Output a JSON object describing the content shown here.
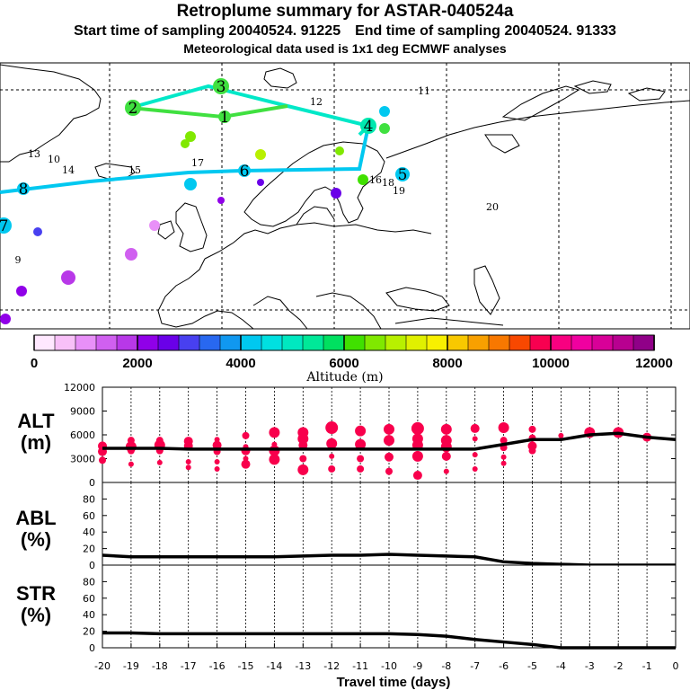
{
  "title": {
    "main": "Retroplume summary for ASTAR-040524a",
    "start": "Start time of sampling 20040524. 91225",
    "end": "End time of sampling 20040524. 91333",
    "met": "Meteorological data used is 1x1 deg ECMWF analyses"
  },
  "colorbar": {
    "label": "Altitude (m)",
    "ticks": [
      "0",
      "2000",
      "4000",
      "6000",
      "8000",
      "10000",
      "12000"
    ],
    "colors": [
      "#ffe8ff",
      "#f8c0f8",
      "#e890f8",
      "#d060f0",
      "#b838e8",
      "#9000e8",
      "#6a00e8",
      "#4840f0",
      "#2868f0",
      "#1098f0",
      "#00c8f0",
      "#00e0e0",
      "#00e8c0",
      "#00e898",
      "#00e060",
      "#40e000",
      "#80e800",
      "#b8f000",
      "#e0f000",
      "#f8f000",
      "#f8c800",
      "#f8a000",
      "#f87800",
      "#f84800",
      "#f80050",
      "#f80080",
      "#f000a0",
      "#d80098",
      "#b80090",
      "#900088"
    ]
  },
  "chart_data": [
    {
      "type": "scatter",
      "name": "altitude",
      "ylabel": "ALT (m)",
      "ylabel_lines": [
        "ALT",
        "(m)"
      ],
      "ylim": [
        0,
        12000
      ],
      "yticks": [
        0,
        3000,
        6000,
        9000,
        12000
      ],
      "xlim": [
        -20,
        0
      ],
      "mean_line": {
        "x": [
          -20,
          -19,
          -18,
          -17,
          -16,
          -15,
          -14,
          -13,
          -12,
          -11,
          -10,
          -9,
          -8,
          -7,
          -6,
          -5,
          -4,
          -3,
          -2,
          -1,
          0
        ],
        "y": [
          4300,
          4300,
          4300,
          4200,
          4200,
          4200,
          4200,
          4200,
          4200,
          4200,
          4200,
          4200,
          4200,
          4200,
          4800,
          5400,
          5400,
          6000,
          6200,
          5700,
          5400
        ]
      },
      "points": [
        {
          "x": -20,
          "y": 4600,
          "s": 5
        },
        {
          "x": -20,
          "y": 3900,
          "s": 5
        },
        {
          "x": -20,
          "y": 2800,
          "s": 4
        },
        {
          "x": -19,
          "y": 5300,
          "s": 4
        },
        {
          "x": -19,
          "y": 4500,
          "s": 6
        },
        {
          "x": -19,
          "y": 4000,
          "s": 4
        },
        {
          "x": -19,
          "y": 2300,
          "s": 3
        },
        {
          "x": -18,
          "y": 5300,
          "s": 4
        },
        {
          "x": -18,
          "y": 4700,
          "s": 6
        },
        {
          "x": -18,
          "y": 4000,
          "s": 4
        },
        {
          "x": -18,
          "y": 2500,
          "s": 3
        },
        {
          "x": -17,
          "y": 5200,
          "s": 5
        },
        {
          "x": -17,
          "y": 4600,
          "s": 5
        },
        {
          "x": -17,
          "y": 2600,
          "s": 3
        },
        {
          "x": -17,
          "y": 1900,
          "s": 3
        },
        {
          "x": -16,
          "y": 5400,
          "s": 3
        },
        {
          "x": -16,
          "y": 4700,
          "s": 5
        },
        {
          "x": -16,
          "y": 3900,
          "s": 4
        },
        {
          "x": -16,
          "y": 2600,
          "s": 3
        },
        {
          "x": -16,
          "y": 1700,
          "s": 3
        },
        {
          "x": -15,
          "y": 5900,
          "s": 4
        },
        {
          "x": -15,
          "y": 4500,
          "s": 3
        },
        {
          "x": -15,
          "y": 4000,
          "s": 5
        },
        {
          "x": -15,
          "y": 3000,
          "s": 3
        },
        {
          "x": -15,
          "y": 2300,
          "s": 5
        },
        {
          "x": -14,
          "y": 6300,
          "s": 6
        },
        {
          "x": -14,
          "y": 4800,
          "s": 3
        },
        {
          "x": -14,
          "y": 4000,
          "s": 6
        },
        {
          "x": -14,
          "y": 2900,
          "s": 6
        },
        {
          "x": -13,
          "y": 6300,
          "s": 6
        },
        {
          "x": -13,
          "y": 5500,
          "s": 6
        },
        {
          "x": -13,
          "y": 4700,
          "s": 5
        },
        {
          "x": -13,
          "y": 3000,
          "s": 4
        },
        {
          "x": -13,
          "y": 1600,
          "s": 6
        },
        {
          "x": -12,
          "y": 6900,
          "s": 7
        },
        {
          "x": -12,
          "y": 4900,
          "s": 6
        },
        {
          "x": -12,
          "y": 3300,
          "s": 3
        },
        {
          "x": -12,
          "y": 1700,
          "s": 4
        },
        {
          "x": -11,
          "y": 6500,
          "s": 6
        },
        {
          "x": -11,
          "y": 4800,
          "s": 6
        },
        {
          "x": -11,
          "y": 3000,
          "s": 4
        },
        {
          "x": -11,
          "y": 1700,
          "s": 4
        },
        {
          "x": -10,
          "y": 6700,
          "s": 6
        },
        {
          "x": -10,
          "y": 5300,
          "s": 6
        },
        {
          "x": -10,
          "y": 3200,
          "s": 5
        },
        {
          "x": -10,
          "y": 1400,
          "s": 4
        },
        {
          "x": -9,
          "y": 6800,
          "s": 7
        },
        {
          "x": -9,
          "y": 5500,
          "s": 6
        },
        {
          "x": -9,
          "y": 4700,
          "s": 6
        },
        {
          "x": -9,
          "y": 3300,
          "s": 6
        },
        {
          "x": -9,
          "y": 900,
          "s": 5
        },
        {
          "x": -8,
          "y": 6700,
          "s": 6
        },
        {
          "x": -8,
          "y": 5300,
          "s": 6
        },
        {
          "x": -8,
          "y": 4500,
          "s": 6
        },
        {
          "x": -8,
          "y": 3300,
          "s": 5
        },
        {
          "x": -8,
          "y": 1400,
          "s": 3
        },
        {
          "x": -7,
          "y": 6800,
          "s": 5
        },
        {
          "x": -7,
          "y": 5500,
          "s": 3
        },
        {
          "x": -7,
          "y": 3500,
          "s": 3
        },
        {
          "x": -7,
          "y": 1700,
          "s": 3
        },
        {
          "x": -6,
          "y": 6900,
          "s": 6
        },
        {
          "x": -6,
          "y": 5300,
          "s": 4
        },
        {
          "x": -6,
          "y": 4400,
          "s": 4
        },
        {
          "x": -6,
          "y": 3200,
          "s": 3
        },
        {
          "x": -6,
          "y": 2400,
          "s": 3
        },
        {
          "x": -5,
          "y": 6700,
          "s": 4
        },
        {
          "x": -5,
          "y": 5600,
          "s": 4
        },
        {
          "x": -5,
          "y": 4600,
          "s": 5
        },
        {
          "x": -5,
          "y": 4000,
          "s": 4
        },
        {
          "x": -4,
          "y": 5900,
          "s": 3
        },
        {
          "x": -3,
          "y": 6300,
          "s": 6
        },
        {
          "x": -2,
          "y": 6300,
          "s": 6
        },
        {
          "x": -1,
          "y": 5700,
          "s": 5
        }
      ]
    },
    {
      "type": "line",
      "name": "abl",
      "ylabel": "ABL (%)",
      "ylabel_lines": [
        "ABL",
        "(%)"
      ],
      "ylim": [
        0,
        100
      ],
      "yticks": [
        0,
        20,
        40,
        60,
        80
      ],
      "xlim": [
        -20,
        0
      ],
      "x": [
        -20,
        -19,
        -18,
        -17,
        -16,
        -15,
        -14,
        -13,
        -12,
        -11,
        -10,
        -9,
        -8,
        -7,
        -6,
        -5,
        -4,
        -3,
        -2,
        -1,
        0
      ],
      "values": [
        12,
        10,
        10,
        10,
        10,
        10,
        10,
        11,
        12,
        12,
        13,
        12,
        11,
        10,
        4,
        2,
        1,
        0,
        0,
        0,
        0
      ]
    },
    {
      "type": "line",
      "name": "str",
      "ylabel": "STR (%)",
      "ylabel_lines": [
        "STR",
        "(%)"
      ],
      "ylim": [
        0,
        100
      ],
      "yticks": [
        0,
        20,
        40,
        60,
        80
      ],
      "xlim": [
        -20,
        0
      ],
      "xlabel": "Travel time (days)",
      "xticks": [
        "-20",
        "-19",
        "-18",
        "-17",
        "-16",
        "-15",
        "-14",
        "-13",
        "-12",
        "-11",
        "-10",
        "-9",
        "-8",
        "-7",
        "-6",
        "-5",
        "-4",
        "-3",
        "-2",
        "-1",
        "0"
      ],
      "x": [
        -20,
        -19,
        -18,
        -17,
        -16,
        -15,
        -14,
        -13,
        -12,
        -11,
        -10,
        -9,
        -8,
        -7,
        -6,
        -5,
        -4,
        -3,
        -2,
        -1,
        0
      ],
      "values": [
        18,
        18,
        17,
        17,
        17,
        17,
        17,
        17,
        17,
        17,
        17,
        16,
        14,
        10,
        7,
        4,
        0,
        0,
        0,
        0,
        0
      ]
    }
  ],
  "map": {
    "plume_line_colors": {
      "green": "#40e040",
      "cyan": "#00e8c8",
      "blue": "#00c8f0"
    },
    "markers": [
      {
        "label": "3",
        "color": "#40e040",
        "big": true
      },
      {
        "label": "2",
        "color": "#40e040",
        "big": true
      },
      {
        "label": "1",
        "color": "#40e040",
        "big": true
      },
      {
        "label": "4",
        "color": "#00e8b0",
        "big": true
      },
      {
        "label": "5",
        "color": "#00c8f0",
        "big": true
      },
      {
        "label": "6",
        "color": "#00c8f0",
        "big": true
      },
      {
        "label": "7",
        "color": "#00c8f0",
        "big": true
      },
      {
        "label": "8",
        "color": "#00c8f0",
        "big": true
      },
      {
        "label": "9",
        "color": "#00a8f0",
        "big": false
      },
      {
        "label": "10",
        "color": "#00c8f0",
        "big": false
      },
      {
        "label": "11",
        "color": "#00c0f0",
        "big": false
      },
      {
        "label": "12",
        "color": "#00e8b0",
        "big": false
      },
      {
        "label": "13",
        "color": "#00e8a0",
        "big": false
      },
      {
        "label": "14",
        "color": "#00c8f0",
        "big": false
      },
      {
        "label": "15",
        "color": "#00c8f0",
        "big": false
      },
      {
        "label": "16",
        "color": "#00c8f0",
        "big": false
      },
      {
        "label": "17",
        "color": "#00c8f0",
        "big": false
      },
      {
        "label": "18",
        "color": "#00c8f0",
        "big": false
      },
      {
        "label": "19",
        "color": "#00c8f0",
        "big": false
      },
      {
        "label": "20",
        "color": "#00c8f0",
        "big": false
      }
    ]
  }
}
